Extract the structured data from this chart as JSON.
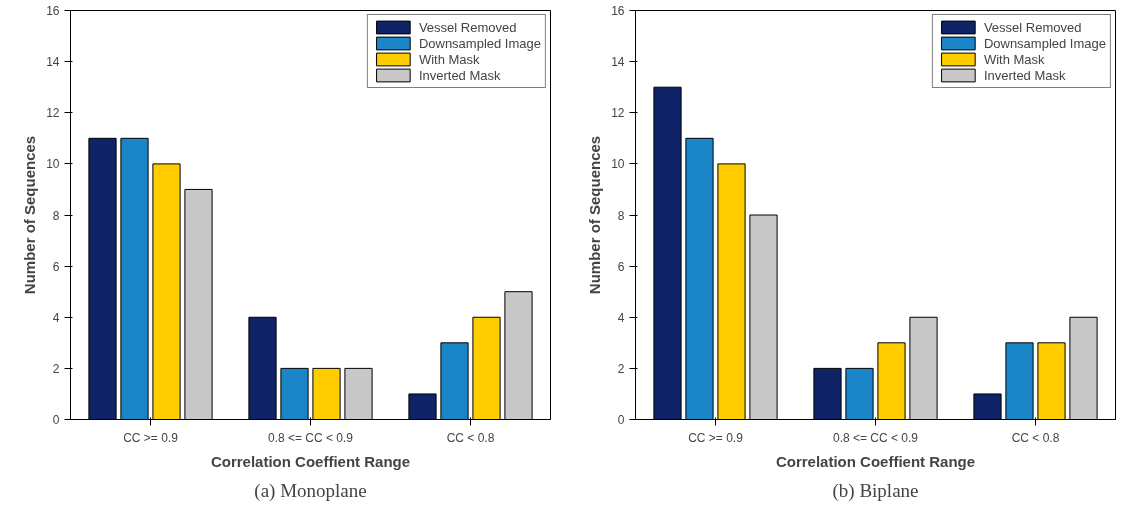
{
  "chart_data": [
    {
      "type": "bar",
      "title": "(a) Monoplane",
      "xlabel": "Correlation Coeffient Range",
      "ylabel": "Number of Sequences",
      "categories": [
        "CC >= 0.9",
        "0.8 <= CC < 0.9",
        "CC < 0.8"
      ],
      "series": [
        {
          "name": "Vessel Removed",
          "color": "#0f2466",
          "values": [
            11,
            4,
            1
          ]
        },
        {
          "name": "Downsampled Image",
          "color": "#1a86c8",
          "values": [
            11,
            2,
            3
          ]
        },
        {
          "name": "With Mask",
          "color": "#ffcc00",
          "values": [
            10,
            2,
            4
          ]
        },
        {
          "name": "Inverted Mask",
          "color": "#c8c8c8",
          "values": [
            9,
            2,
            5
          ]
        }
      ],
      "ylim": [
        0,
        16
      ],
      "yticks": [
        0,
        2,
        4,
        6,
        8,
        10,
        12,
        14,
        16
      ],
      "grid": false,
      "legend": "top right"
    },
    {
      "type": "bar",
      "title": "(b) Biplane",
      "xlabel": "Correlation Coeffient Range",
      "ylabel": "Number of Sequences",
      "categories": [
        "CC >= 0.9",
        "0.8 <= CC < 0.9",
        "CC < 0.8"
      ],
      "series": [
        {
          "name": "Vessel Removed",
          "color": "#0f2466",
          "values": [
            13,
            2,
            1
          ]
        },
        {
          "name": "Downsampled Image",
          "color": "#1a86c8",
          "values": [
            11,
            2,
            3
          ]
        },
        {
          "name": "With Mask",
          "color": "#ffcc00",
          "values": [
            10,
            3,
            3
          ]
        },
        {
          "name": "Inverted Mask",
          "color": "#c8c8c8",
          "values": [
            8,
            4,
            4
          ]
        }
      ],
      "ylim": [
        0,
        16
      ],
      "yticks": [
        0,
        2,
        4,
        6,
        8,
        10,
        12,
        14,
        16
      ],
      "grid": false,
      "legend": "top right"
    }
  ]
}
